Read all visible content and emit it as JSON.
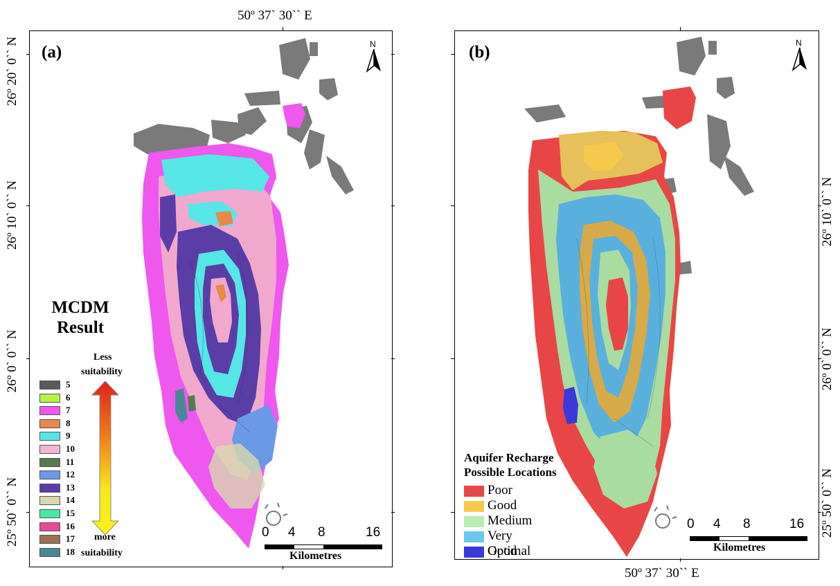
{
  "coords": {
    "top_lon": "50º 37` 30`` E",
    "bottom_lon": "50º 37` 30`` E",
    "a_lats": [
      "26º 20` 0`` N",
      "26º 10` 0`` N",
      "26º 0` 0`` N",
      "25º 50` 0`` N"
    ],
    "b_lats": [
      "26º 10` 0`` N",
      "26º 0` 0`` N",
      "25º 50` 0`` N"
    ]
  },
  "panel_a": {
    "label": "(a)",
    "north": "N",
    "legend_title_1": "MCDM",
    "legend_title_2": "Result",
    "arrow_top": "Less",
    "arrow_top2": "suitability",
    "arrow_bottom": "more",
    "arrow_bottom2": "suitability",
    "classes": [
      {
        "label": "5",
        "color": "#5a5a5a"
      },
      {
        "label": "6",
        "color": "#b6f24a"
      },
      {
        "label": "7",
        "color": "#ee58ee"
      },
      {
        "label": "8",
        "color": "#e8884a"
      },
      {
        "label": "9",
        "color": "#56e6e6"
      },
      {
        "label": "10",
        "color": "#f4b6d4"
      },
      {
        "label": "11",
        "color": "#557a52"
      },
      {
        "label": "12",
        "color": "#6a9ae6"
      },
      {
        "label": "13",
        "color": "#5a3ea6"
      },
      {
        "label": "14",
        "color": "#d8d8b0"
      },
      {
        "label": "15",
        "color": "#48e8a8"
      },
      {
        "label": "16",
        "color": "#e84a96"
      },
      {
        "label": "17",
        "color": "#9a7050"
      },
      {
        "label": "18",
        "color": "#4a8898"
      }
    ],
    "scale": {
      "n0": "0",
      "n4": "4",
      "n8": "8",
      "n16": "16",
      "unit": "Kilometres"
    }
  },
  "panel_b": {
    "label": "(b)",
    "north": "N",
    "legend_title_1": "Aquifer Recharge",
    "legend_title_2": "Possible Locations",
    "classes": [
      {
        "label": "Poor",
        "color": "#e84646"
      },
      {
        "label": "Good",
        "color": "#f6c84c"
      },
      {
        "label": "Medium",
        "color": "#b8ecb0"
      },
      {
        "label": "Very Good",
        "color": "#6ac6ee"
      },
      {
        "label": "Optimal",
        "color": "#3a3adc"
      }
    ],
    "scale": {
      "n0": "0",
      "n4": "4",
      "n8": "8",
      "n16": "16",
      "unit": "Kilometres"
    }
  }
}
